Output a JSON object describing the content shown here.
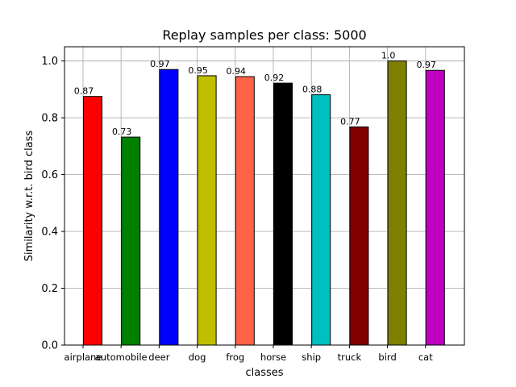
{
  "chart_data": {
    "type": "bar",
    "title": "Replay samples per class: 5000",
    "xlabel": "classes",
    "ylabel": "Similarity w.r.t. bird class",
    "categories": [
      "airplane",
      "automobile",
      "deer",
      "dog",
      "frog",
      "horse",
      "ship",
      "truck",
      "bird",
      "cat"
    ],
    "values": [
      0.875,
      0.732,
      0.97,
      0.948,
      0.945,
      0.922,
      0.881,
      0.768,
      1.0,
      0.967
    ],
    "value_labels": [
      "0.87",
      "0.73",
      "0.97",
      "0.95",
      "0.94",
      "0.92",
      "0.88",
      "0.77",
      "1.0",
      "0.97"
    ],
    "colors": [
      "#ff0000",
      "#008000",
      "#0000ff",
      "#bfbf00",
      "#ff6347",
      "#000000",
      "#00bfbf",
      "#800000",
      "#808000",
      "#bf00bf"
    ],
    "ylim": [
      0,
      1.05
    ],
    "yticks": [
      0.0,
      0.2,
      0.4,
      0.6,
      0.8,
      1.0
    ],
    "ytick_labels": [
      "0.0",
      "0.2",
      "0.4",
      "0.6",
      "0.8",
      "1.0"
    ],
    "grid": true,
    "legend": "none"
  }
}
